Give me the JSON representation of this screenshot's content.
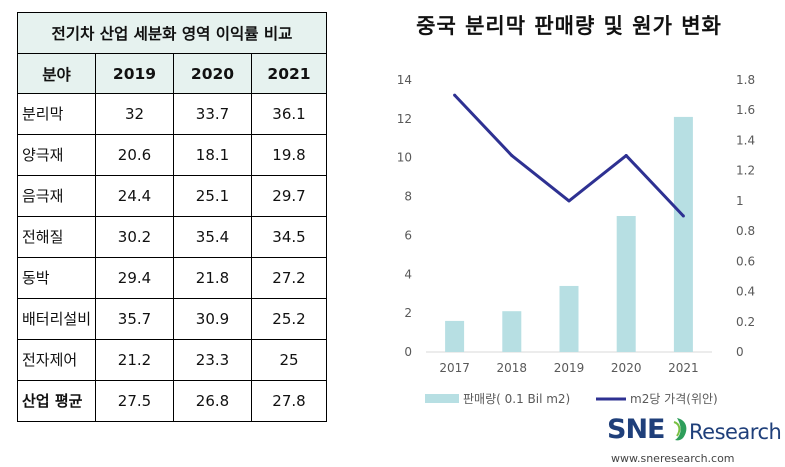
{
  "table": {
    "title": "전기차 산업 세분화 영역 이익률 비교",
    "headers": [
      "분야",
      "2019",
      "2020",
      "2021"
    ],
    "rows": [
      {
        "category": "분리막",
        "values": [
          "32",
          "33.7",
          "36.1"
        ]
      },
      {
        "category": "양극재",
        "values": [
          "20.6",
          "18.1",
          "19.8"
        ]
      },
      {
        "category": "음극재",
        "values": [
          "24.4",
          "25.1",
          "29.7"
        ]
      },
      {
        "category": "전해질",
        "values": [
          "30.2",
          "35.4",
          "34.5"
        ]
      },
      {
        "category": "동박",
        "values": [
          "29.4",
          "21.8",
          "27.2"
        ]
      },
      {
        "category": "배터리설비",
        "values": [
          "35.7",
          "30.9",
          "25.2"
        ]
      },
      {
        "category": "전자제어",
        "values": [
          "21.2",
          "23.3",
          "25"
        ]
      },
      {
        "category": "산업 평균",
        "values": [
          "27.5",
          "26.8",
          "27.8"
        ]
      }
    ]
  },
  "chart_data": {
    "type": "bar",
    "title": "중국 분리막 판매량 및 원가 변화",
    "categories": [
      "2017",
      "2018",
      "2019",
      "2020",
      "2021"
    ],
    "series": [
      {
        "name": "판매량( 0.1 Bil m2)",
        "type": "bar",
        "axis": "left",
        "values": [
          1.6,
          2.1,
          3.4,
          7.0,
          12.1
        ],
        "color": "#b7dfe3"
      },
      {
        "name": "m2당 가격(위안)",
        "type": "line",
        "axis": "right",
        "values": [
          1.7,
          1.3,
          1.0,
          1.3,
          0.9
        ],
        "color": "#2e3192"
      }
    ],
    "y_left": {
      "min": 0,
      "max": 14,
      "ticks": [
        "0",
        "2",
        "4",
        "6",
        "8",
        "10",
        "12",
        "14"
      ]
    },
    "y_right": {
      "min": 0,
      "max": 1.8,
      "ticks": [
        "0",
        "0.2",
        "0.4",
        "0.6",
        "0.8",
        "1",
        "1.2",
        "1.4",
        "1.6",
        "1.8"
      ]
    },
    "grid": false,
    "legend": "bottom"
  },
  "logo": {
    "brand": "SNE",
    "suffix": "Research",
    "url": "www.sneresearch.com",
    "color": "#1f3f7a"
  }
}
